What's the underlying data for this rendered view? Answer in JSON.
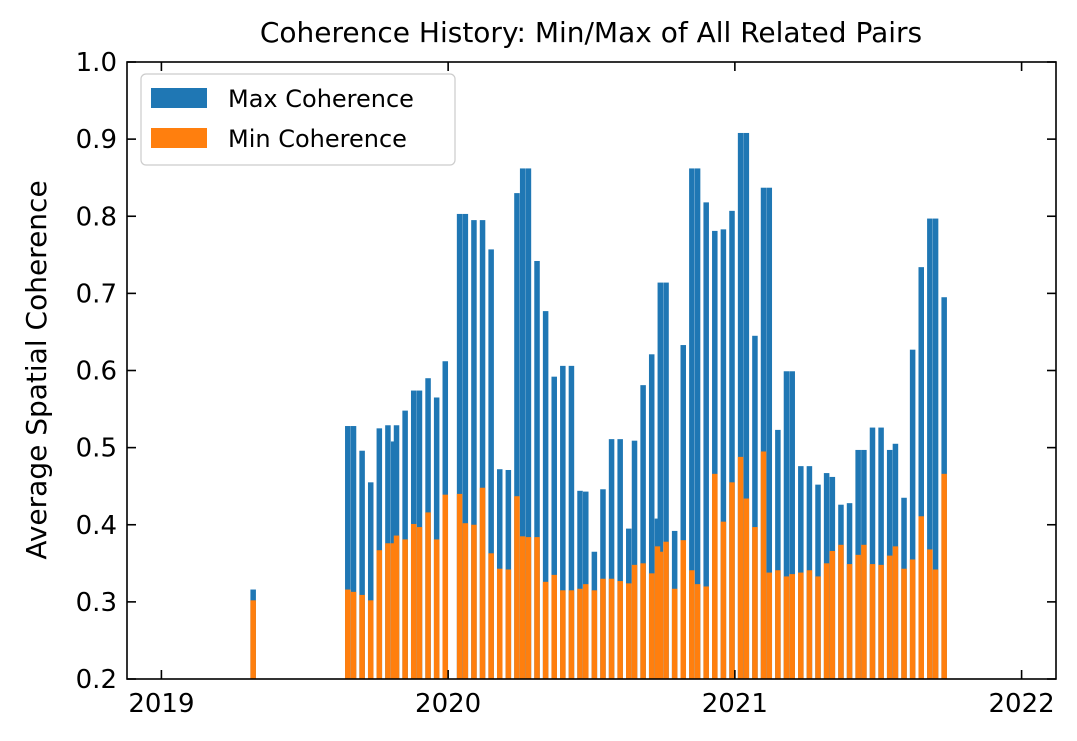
{
  "chart_data": {
    "type": "bar",
    "title": "Coherence History: Min/Max of All Related Pairs",
    "xlabel": "",
    "ylabel": "Average Spatial Coherence",
    "ylim": [
      0.2,
      1.0
    ],
    "yticks": [
      0.2,
      0.3,
      0.4,
      0.5,
      0.6,
      0.7,
      0.8,
      0.9,
      1.0
    ],
    "ytick_labels": [
      "0.2",
      "0.3",
      "0.4",
      "0.5",
      "0.6",
      "0.7",
      "0.8",
      "0.9",
      "1.0"
    ],
    "xlim": [
      2018.88,
      2022.12
    ],
    "xticks": [
      2019,
      2020,
      2021,
      2022
    ],
    "xtick_labels": [
      "2019",
      "2020",
      "2021",
      "2022"
    ],
    "legend_position": "top-left",
    "grid": false,
    "bar_width_years": 0.0192,
    "series": [
      {
        "name": "Max Coherence",
        "color": "#1f77b4",
        "points": [
          [
            2019.32,
            0.316
          ],
          [
            2019.65,
            0.528
          ],
          [
            2019.67,
            0.528
          ],
          [
            2019.7,
            0.496
          ],
          [
            2019.73,
            0.455
          ],
          [
            2019.76,
            0.525
          ],
          [
            2019.79,
            0.529
          ],
          [
            2019.81,
            0.508
          ],
          [
            2019.82,
            0.529
          ],
          [
            2019.85,
            0.548
          ],
          [
            2019.88,
            0.574
          ],
          [
            2019.9,
            0.574
          ],
          [
            2019.93,
            0.59
          ],
          [
            2019.96,
            0.565
          ],
          [
            2019.99,
            0.612
          ],
          [
            2020.04,
            0.803
          ],
          [
            2020.06,
            0.803
          ],
          [
            2020.09,
            0.795
          ],
          [
            2020.12,
            0.795
          ],
          [
            2020.15,
            0.757
          ],
          [
            2020.18,
            0.472
          ],
          [
            2020.21,
            0.471
          ],
          [
            2020.24,
            0.83
          ],
          [
            2020.26,
            0.862
          ],
          [
            2020.28,
            0.862
          ],
          [
            2020.31,
            0.742
          ],
          [
            2020.34,
            0.677
          ],
          [
            2020.37,
            0.592
          ],
          [
            2020.4,
            0.606
          ],
          [
            2020.43,
            0.606
          ],
          [
            2020.46,
            0.444
          ],
          [
            2020.48,
            0.443
          ],
          [
            2020.51,
            0.365
          ],
          [
            2020.54,
            0.446
          ],
          [
            2020.57,
            0.511
          ],
          [
            2020.6,
            0.511
          ],
          [
            2020.63,
            0.395
          ],
          [
            2020.65,
            0.509
          ],
          [
            2020.68,
            0.581
          ],
          [
            2020.71,
            0.621
          ],
          [
            2020.73,
            0.408
          ],
          [
            2020.74,
            0.714
          ],
          [
            2020.76,
            0.714
          ],
          [
            2020.79,
            0.392
          ],
          [
            2020.82,
            0.633
          ],
          [
            2020.85,
            0.862
          ],
          [
            2020.87,
            0.862
          ],
          [
            2020.9,
            0.818
          ],
          [
            2020.93,
            0.781
          ],
          [
            2020.96,
            0.783
          ],
          [
            2020.99,
            0.807
          ],
          [
            2021.02,
            0.908
          ],
          [
            2021.04,
            0.908
          ],
          [
            2021.07,
            0.645
          ],
          [
            2021.1,
            0.837
          ],
          [
            2021.12,
            0.837
          ],
          [
            2021.15,
            0.523
          ],
          [
            2021.18,
            0.599
          ],
          [
            2021.2,
            0.599
          ],
          [
            2021.23,
            0.476
          ],
          [
            2021.26,
            0.476
          ],
          [
            2021.29,
            0.452
          ],
          [
            2021.32,
            0.467
          ],
          [
            2021.34,
            0.462
          ],
          [
            2021.37,
            0.426
          ],
          [
            2021.4,
            0.428
          ],
          [
            2021.43,
            0.497
          ],
          [
            2021.45,
            0.497
          ],
          [
            2021.48,
            0.526
          ],
          [
            2021.51,
            0.526
          ],
          [
            2021.54,
            0.497
          ],
          [
            2021.56,
            0.505
          ],
          [
            2021.59,
            0.435
          ],
          [
            2021.62,
            0.627
          ],
          [
            2021.65,
            0.734
          ],
          [
            2021.68,
            0.797
          ],
          [
            2021.7,
            0.797
          ],
          [
            2021.73,
            0.695
          ]
        ]
      },
      {
        "name": "Min Coherence",
        "color": "#ff7f0e",
        "points": [
          [
            2019.32,
            0.302
          ],
          [
            2019.65,
            0.316
          ],
          [
            2019.67,
            0.313
          ],
          [
            2019.7,
            0.309
          ],
          [
            2019.73,
            0.302
          ],
          [
            2019.76,
            0.367
          ],
          [
            2019.79,
            0.376
          ],
          [
            2019.81,
            0.376
          ],
          [
            2019.82,
            0.386
          ],
          [
            2019.85,
            0.381
          ],
          [
            2019.88,
            0.401
          ],
          [
            2019.9,
            0.397
          ],
          [
            2019.93,
            0.416
          ],
          [
            2019.96,
            0.381
          ],
          [
            2019.99,
            0.439
          ],
          [
            2020.04,
            0.44
          ],
          [
            2020.06,
            0.402
          ],
          [
            2020.09,
            0.4
          ],
          [
            2020.12,
            0.448
          ],
          [
            2020.15,
            0.363
          ],
          [
            2020.18,
            0.343
          ],
          [
            2020.21,
            0.342
          ],
          [
            2020.24,
            0.437
          ],
          [
            2020.26,
            0.385
          ],
          [
            2020.28,
            0.384
          ],
          [
            2020.31,
            0.384
          ],
          [
            2020.34,
            0.326
          ],
          [
            2020.37,
            0.335
          ],
          [
            2020.4,
            0.315
          ],
          [
            2020.43,
            0.315
          ],
          [
            2020.46,
            0.317
          ],
          [
            2020.48,
            0.323
          ],
          [
            2020.51,
            0.315
          ],
          [
            2020.54,
            0.33
          ],
          [
            2020.57,
            0.33
          ],
          [
            2020.6,
            0.327
          ],
          [
            2020.63,
            0.324
          ],
          [
            2020.65,
            0.348
          ],
          [
            2020.68,
            0.35
          ],
          [
            2020.71,
            0.337
          ],
          [
            2020.73,
            0.372
          ],
          [
            2020.74,
            0.365
          ],
          [
            2020.76,
            0.378
          ],
          [
            2020.79,
            0.317
          ],
          [
            2020.82,
            0.38
          ],
          [
            2020.85,
            0.341
          ],
          [
            2020.87,
            0.323
          ],
          [
            2020.9,
            0.32
          ],
          [
            2020.93,
            0.466
          ],
          [
            2020.96,
            0.404
          ],
          [
            2020.99,
            0.455
          ],
          [
            2021.02,
            0.488
          ],
          [
            2021.04,
            0.434
          ],
          [
            2021.07,
            0.397
          ],
          [
            2021.1,
            0.495
          ],
          [
            2021.12,
            0.338
          ],
          [
            2021.15,
            0.341
          ],
          [
            2021.18,
            0.333
          ],
          [
            2021.2,
            0.336
          ],
          [
            2021.23,
            0.338
          ],
          [
            2021.26,
            0.341
          ],
          [
            2021.29,
            0.333
          ],
          [
            2021.32,
            0.35
          ],
          [
            2021.34,
            0.366
          ],
          [
            2021.37,
            0.374
          ],
          [
            2021.4,
            0.349
          ],
          [
            2021.43,
            0.361
          ],
          [
            2021.45,
            0.374
          ],
          [
            2021.48,
            0.349
          ],
          [
            2021.51,
            0.348
          ],
          [
            2021.54,
            0.36
          ],
          [
            2021.56,
            0.372
          ],
          [
            2021.59,
            0.343
          ],
          [
            2021.62,
            0.355
          ],
          [
            2021.65,
            0.411
          ],
          [
            2021.68,
            0.368
          ],
          [
            2021.7,
            0.342
          ],
          [
            2021.73,
            0.466
          ]
        ]
      }
    ]
  }
}
